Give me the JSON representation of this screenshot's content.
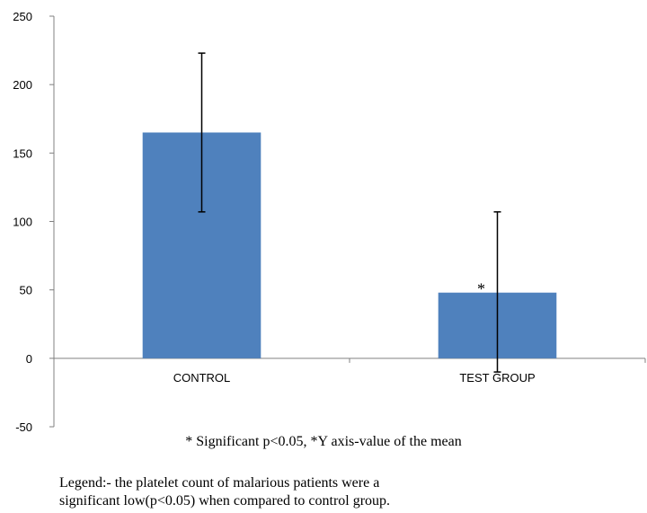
{
  "chart_data": {
    "type": "bar",
    "categories": [
      "CONTROL",
      "TEST GROUP"
    ],
    "values": [
      165,
      48
    ],
    "error_bars": [
      {
        "low": 107,
        "high": 223
      },
      {
        "low": -10,
        "high": 107
      }
    ],
    "significance_marks": [
      "",
      "*"
    ],
    "ylim": [
      -50,
      250
    ],
    "yticks": [
      -50,
      0,
      50,
      100,
      150,
      200,
      250
    ],
    "bar_color": "#4f81bd",
    "grid": false,
    "legend": "none"
  },
  "notes": {
    "footnote": "* Significant p<0.05, *Y axis-value of the mean",
    "legend_line1": "Legend:- the platelet count of malarious patients were a",
    "legend_line2": "significant low(p<0.05) when compared to control group."
  }
}
